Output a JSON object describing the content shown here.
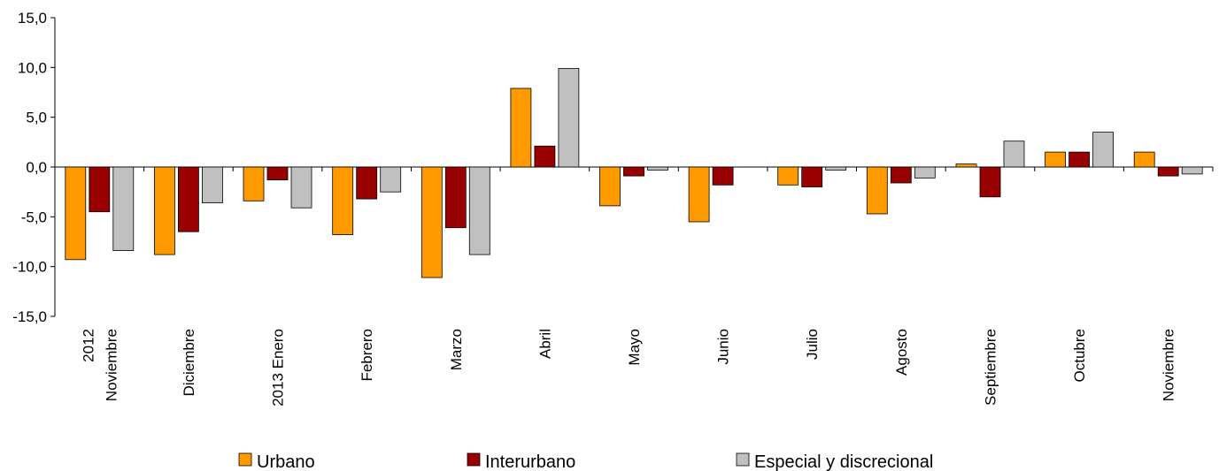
{
  "chart_data": {
    "type": "bar",
    "categories": [
      [
        "2012",
        "Noviembre"
      ],
      [
        "Diciembre"
      ],
      [
        "2013 Enero"
      ],
      [
        "Febrero"
      ],
      [
        "Marzo"
      ],
      [
        "Abril"
      ],
      [
        "Mayo"
      ],
      [
        "Junio"
      ],
      [
        "Julio"
      ],
      [
        "Agosto"
      ],
      [
        "Septiembre"
      ],
      [
        "Octubre"
      ],
      [
        "Noviembre"
      ]
    ],
    "series": [
      {
        "name": "Urbano",
        "color": "#FF9900",
        "values": [
          -9.3,
          -8.8,
          -3.4,
          -6.8,
          -11.1,
          7.9,
          -3.9,
          -5.5,
          -1.8,
          -4.7,
          0.3,
          1.5,
          1.5
        ]
      },
      {
        "name": "Interurbano",
        "color": "#990000",
        "values": [
          -4.5,
          -6.5,
          -1.3,
          -3.2,
          -6.1,
          2.1,
          -0.9,
          -1.8,
          -2.0,
          -1.6,
          -3.0,
          1.5,
          -0.9
        ]
      },
      {
        "name": "Especial y discrecional",
        "color": "#C0C0C0",
        "values": [
          -8.4,
          -3.6,
          -4.1,
          -2.5,
          -8.8,
          9.9,
          -0.3,
          0.0,
          -0.3,
          -1.1,
          2.6,
          3.5,
          -0.7
        ]
      }
    ],
    "ylim": [
      -15,
      15
    ],
    "yticks": [
      "15,0",
      "10,0",
      "5,0",
      "0,0",
      "-5,0",
      "-10,0",
      "-15,0"
    ],
    "ytick_values": [
      15,
      10,
      5,
      0,
      -5,
      -10,
      -15
    ],
    "legend_position": "bottom",
    "grid": false,
    "title": "",
    "xlabel": "",
    "ylabel": ""
  }
}
